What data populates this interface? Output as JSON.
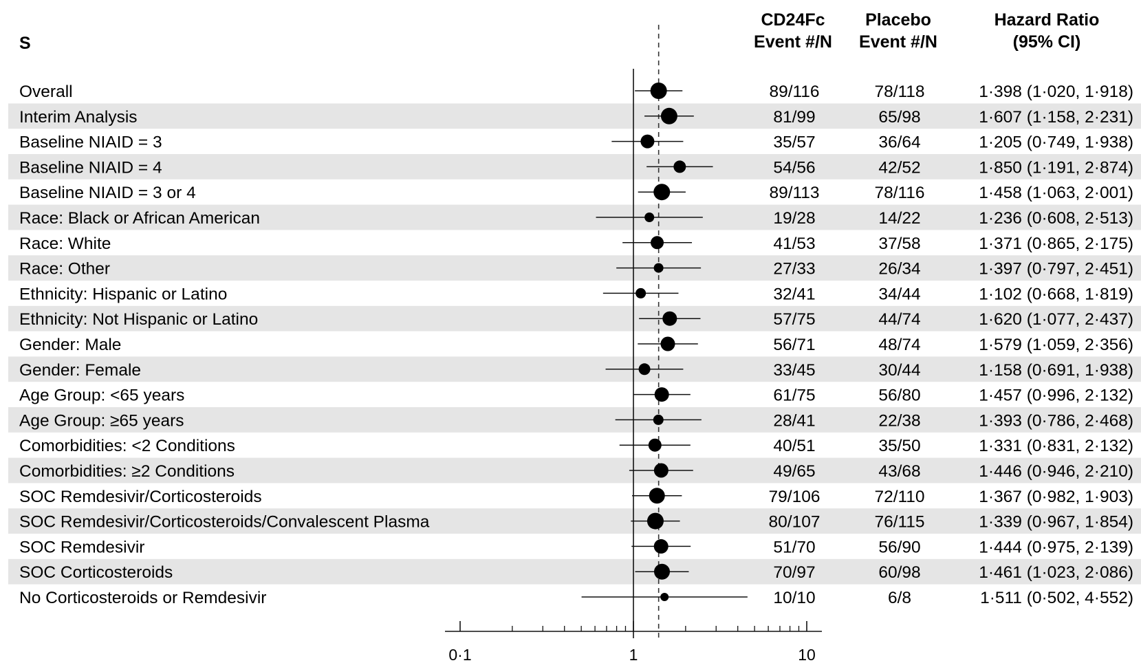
{
  "headers": {
    "subgroup": "Subgroup",
    "cd24fc": [
      "CD24Fc",
      "Event #/N"
    ],
    "placebo": [
      "Placebo",
      "Event #/N"
    ],
    "hr": [
      "Hazard Ratio",
      "(95% CI)"
    ]
  },
  "chart_data": {
    "type": "forest",
    "x_scale": "log",
    "xlim": [
      0.1,
      10
    ],
    "x_ticks": [
      0.1,
      1,
      10
    ],
    "x_tick_labels": [
      "0·1",
      "1",
      "10"
    ],
    "reference_line": 1,
    "overall_reference_line": 1.398,
    "shaded_alternate_rows": true,
    "rows": [
      {
        "label": "Overall",
        "cd24fc": "89/116",
        "placebo": "78/118",
        "hr": 1.398,
        "lo": 1.02,
        "hi": 1.918,
        "hr_text": "1·398 (1·020, 1·918)",
        "marker": 12
      },
      {
        "label": "Interim Analysis",
        "cd24fc": "81/99",
        "placebo": "65/98",
        "hr": 1.607,
        "lo": 1.158,
        "hi": 2.231,
        "hr_text": "1·607 (1·158, 2·231)",
        "marker": 12
      },
      {
        "label": "Baseline NIAID = 3",
        "cd24fc": "35/57",
        "placebo": "36/64",
        "hr": 1.205,
        "lo": 0.749,
        "hi": 1.938,
        "hr_text": "1·205 (0·749, 1·938)",
        "marker": 10
      },
      {
        "label": "Baseline NIAID = 4",
        "cd24fc": "54/56",
        "placebo": "42/52",
        "hr": 1.85,
        "lo": 1.191,
        "hi": 2.874,
        "hr_text": "1·850 (1·191, 2·874)",
        "marker": 9
      },
      {
        "label": "Baseline NIAID = 3 or 4",
        "cd24fc": "89/113",
        "placebo": "78/116",
        "hr": 1.458,
        "lo": 1.063,
        "hi": 2.001,
        "hr_text": "1·458 (1·063, 2·001)",
        "marker": 12
      },
      {
        "label": "Race: Black or African American",
        "cd24fc": "19/28",
        "placebo": "14/22",
        "hr": 1.236,
        "lo": 0.608,
        "hi": 2.513,
        "hr_text": "1·236 (0·608, 2·513)",
        "marker": 7
      },
      {
        "label": "Race: White",
        "cd24fc": "41/53",
        "placebo": "37/58",
        "hr": 1.371,
        "lo": 0.865,
        "hi": 2.175,
        "hr_text": "1·371 (0·865, 2·175)",
        "marker": 9.5
      },
      {
        "label": "Race: Other",
        "cd24fc": "27/33",
        "placebo": "26/34",
        "hr": 1.397,
        "lo": 0.797,
        "hi": 2.451,
        "hr_text": "1·397 (0·797, 2·451)",
        "marker": 7
      },
      {
        "label": "Ethnicity: Hispanic or Latino",
        "cd24fc": "32/41",
        "placebo": "34/44",
        "hr": 1.102,
        "lo": 0.668,
        "hi": 1.819,
        "hr_text": "1·102 (0·668, 1·819)",
        "marker": 7.5
      },
      {
        "label": "Ethnicity: Not Hispanic or Latino",
        "cd24fc": "57/75",
        "placebo": "44/74",
        "hr": 1.62,
        "lo": 1.077,
        "hi": 2.437,
        "hr_text": "1·620 (1·077, 2·437)",
        "marker": 10.5
      },
      {
        "label": "Gender: Male",
        "cd24fc": "56/71",
        "placebo": "48/74",
        "hr": 1.579,
        "lo": 1.059,
        "hi": 2.356,
        "hr_text": "1·579 (1·059, 2·356)",
        "marker": 10.5
      },
      {
        "label": "Gender: Female",
        "cd24fc": "33/45",
        "placebo": "30/44",
        "hr": 1.158,
        "lo": 0.691,
        "hi": 1.938,
        "hr_text": "1·158 (0·691, 1·938)",
        "marker": 8.5
      },
      {
        "label": "Age Group: <65 years",
        "cd24fc": "61/75",
        "placebo": "56/80",
        "hr": 1.457,
        "lo": 0.996,
        "hi": 2.132,
        "hr_text": "1·457 (0·996, 2·132)",
        "marker": 10.5
      },
      {
        "label": "Age Group: ≥65 years",
        "cd24fc": "28/41",
        "placebo": "22/38",
        "hr": 1.393,
        "lo": 0.786,
        "hi": 2.468,
        "hr_text": "1·393 (0·786, 2·468)",
        "marker": 7.5
      },
      {
        "label": "Comorbidities: <2 Conditions",
        "cd24fc": "40/51",
        "placebo": "35/50",
        "hr": 1.331,
        "lo": 0.831,
        "hi": 2.132,
        "hr_text": "1·331 (0·831, 2·132)",
        "marker": 9.5
      },
      {
        "label": "Comorbidities: ≥2 Conditions",
        "cd24fc": "49/65",
        "placebo": "43/68",
        "hr": 1.446,
        "lo": 0.946,
        "hi": 2.21,
        "hr_text": "1·446 (0·946, 2·210)",
        "marker": 10.5
      },
      {
        "label": "SOC Remdesivir/Corticosteroids",
        "cd24fc": "79/106",
        "placebo": "72/110",
        "hr": 1.367,
        "lo": 0.982,
        "hi": 1.903,
        "hr_text": "1·367 (0·982, 1·903)",
        "marker": 11.5
      },
      {
        "label": "SOC Remdesivir/Corticosteroids/Convalescent Plasma",
        "cd24fc": "80/107",
        "placebo": "76/115",
        "hr": 1.339,
        "lo": 0.967,
        "hi": 1.854,
        "hr_text": "1·339 (0·967, 1·854)",
        "marker": 12
      },
      {
        "label": "SOC Remdesivir",
        "cd24fc": "51/70",
        "placebo": "56/90",
        "hr": 1.444,
        "lo": 0.975,
        "hi": 2.139,
        "hr_text": "1·444 (0·975, 2·139)",
        "marker": 10.5
      },
      {
        "label": "SOC Corticosteroids",
        "cd24fc": "70/97",
        "placebo": "60/98",
        "hr": 1.461,
        "lo": 1.023,
        "hi": 2.086,
        "hr_text": "1·461 (1·023, 2·086)",
        "marker": 11.5
      },
      {
        "label": "No Corticosteroids or Remdesivir",
        "cd24fc": "10/10",
        "placebo": "6/8",
        "hr": 1.511,
        "lo": 0.502,
        "hi": 4.552,
        "hr_text": "1·511 (0·502, 4·552)",
        "marker": 6
      }
    ]
  }
}
